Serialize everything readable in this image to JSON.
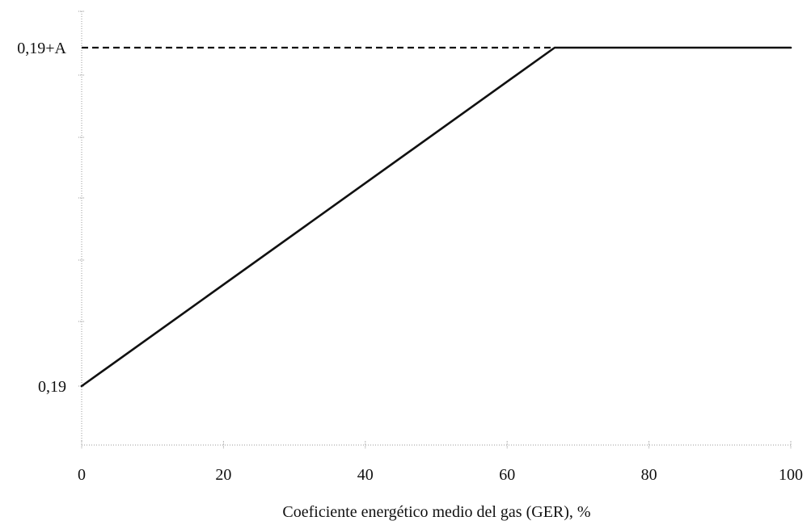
{
  "chart_data": {
    "type": "line",
    "title": "",
    "xlabel": "Coeficiente energético medio del gas (GER), %",
    "ylabel": "",
    "xlim": [
      0,
      100
    ],
    "x_ticks": [
      0,
      20,
      40,
      60,
      80,
      100
    ],
    "y_ticks": [
      {
        "label": "0,19",
        "level": 0
      },
      {
        "label": "0,19+A",
        "level": 1
      }
    ],
    "grid": false,
    "legend": "none",
    "series": [
      {
        "x": [
          0,
          66.7,
          100
        ],
        "y": [
          0,
          1,
          1
        ],
        "y_labels": [
          "0,19",
          "0,19+A",
          "0,19+A"
        ],
        "color": "#111111",
        "style": "solid"
      }
    ],
    "reference_lines": [
      {
        "orientation": "horizontal",
        "level": 1,
        "label": "0,19+A",
        "x_range": [
          0,
          66.7
        ],
        "style": "dashed",
        "color": "#111111"
      }
    ]
  }
}
